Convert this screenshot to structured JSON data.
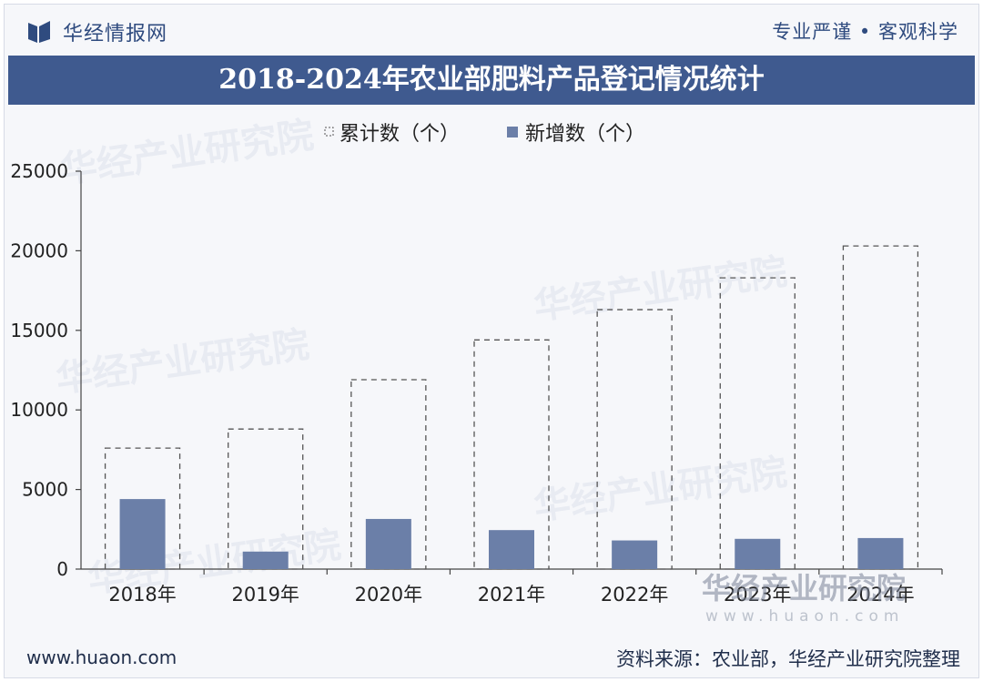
{
  "header": {
    "brand": "华经情报网",
    "tagline": "专业严谨 • 客观科学",
    "title": "2018-2024年农业部肥料产品登记情况统计"
  },
  "footer": {
    "website": "www.huaon.com",
    "source": "资料来源：农业部，华经产业研究院整理"
  },
  "watermark": {
    "text": "华经产业研究院",
    "url": "www.huaon.com"
  },
  "colors": {
    "title_band": "#3f5a8f",
    "bar_new": "#6b7fa8",
    "bar_cumulative_border": "#555555"
  },
  "chart_data": {
    "type": "bar",
    "categories": [
      "2018年",
      "2019年",
      "2020年",
      "2021年",
      "2022年",
      "2023年",
      "2024年"
    ],
    "series": [
      {
        "name": "累计数（个）",
        "style": "dashed-outline",
        "values": [
          7600,
          8800,
          11900,
          14400,
          16300,
          18300,
          20300
        ]
      },
      {
        "name": "新增数（个）",
        "style": "solid",
        "values": [
          4400,
          1100,
          3150,
          2450,
          1800,
          1900,
          1950
        ]
      }
    ],
    "yticks": [
      "0",
      "5000",
      "10000",
      "15000",
      "20000",
      "25000"
    ],
    "ylim": [
      0,
      25000
    ],
    "legend_position": "top",
    "grid": false
  }
}
